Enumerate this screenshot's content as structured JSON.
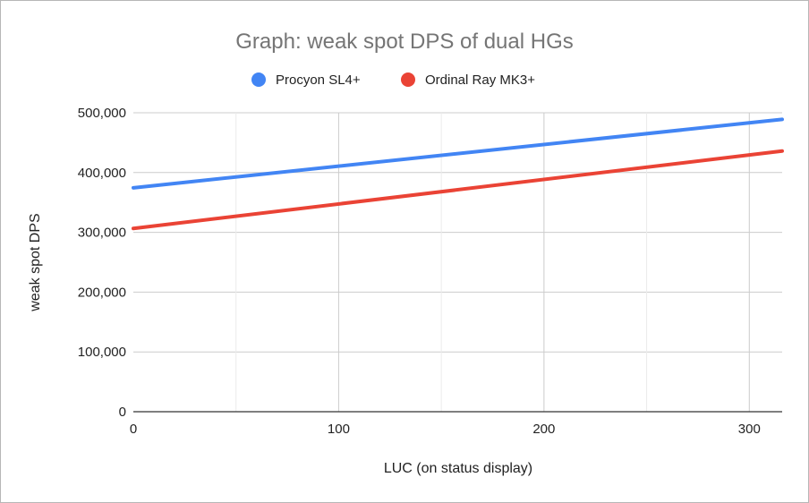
{
  "chart_data": {
    "type": "line",
    "title": "Graph: weak spot DPS of dual HGs",
    "xlabel": "LUC (on status display)",
    "ylabel": "weak spot DPS",
    "xlim": [
      0,
      316
    ],
    "ylim": [
      0,
      500000
    ],
    "x_ticks": [
      0,
      100,
      200,
      300
    ],
    "x_tick_labels": [
      "0",
      "100",
      "200",
      "300"
    ],
    "y_ticks": [
      0,
      100000,
      200000,
      300000,
      400000,
      500000
    ],
    "y_tick_labels": [
      "0",
      "100,000",
      "200,000",
      "300,000",
      "400,000",
      "500,000"
    ],
    "grid": true,
    "legend_position": "top",
    "series": [
      {
        "name": "Procyon SL4+",
        "color": "#4285f4",
        "x": [
          0,
          316
        ],
        "y": [
          374500,
          489000
        ]
      },
      {
        "name": "Ordinal Ray MK3+",
        "color": "#ea4335",
        "x": [
          0,
          316
        ],
        "y": [
          306500,
          436000
        ]
      }
    ]
  }
}
